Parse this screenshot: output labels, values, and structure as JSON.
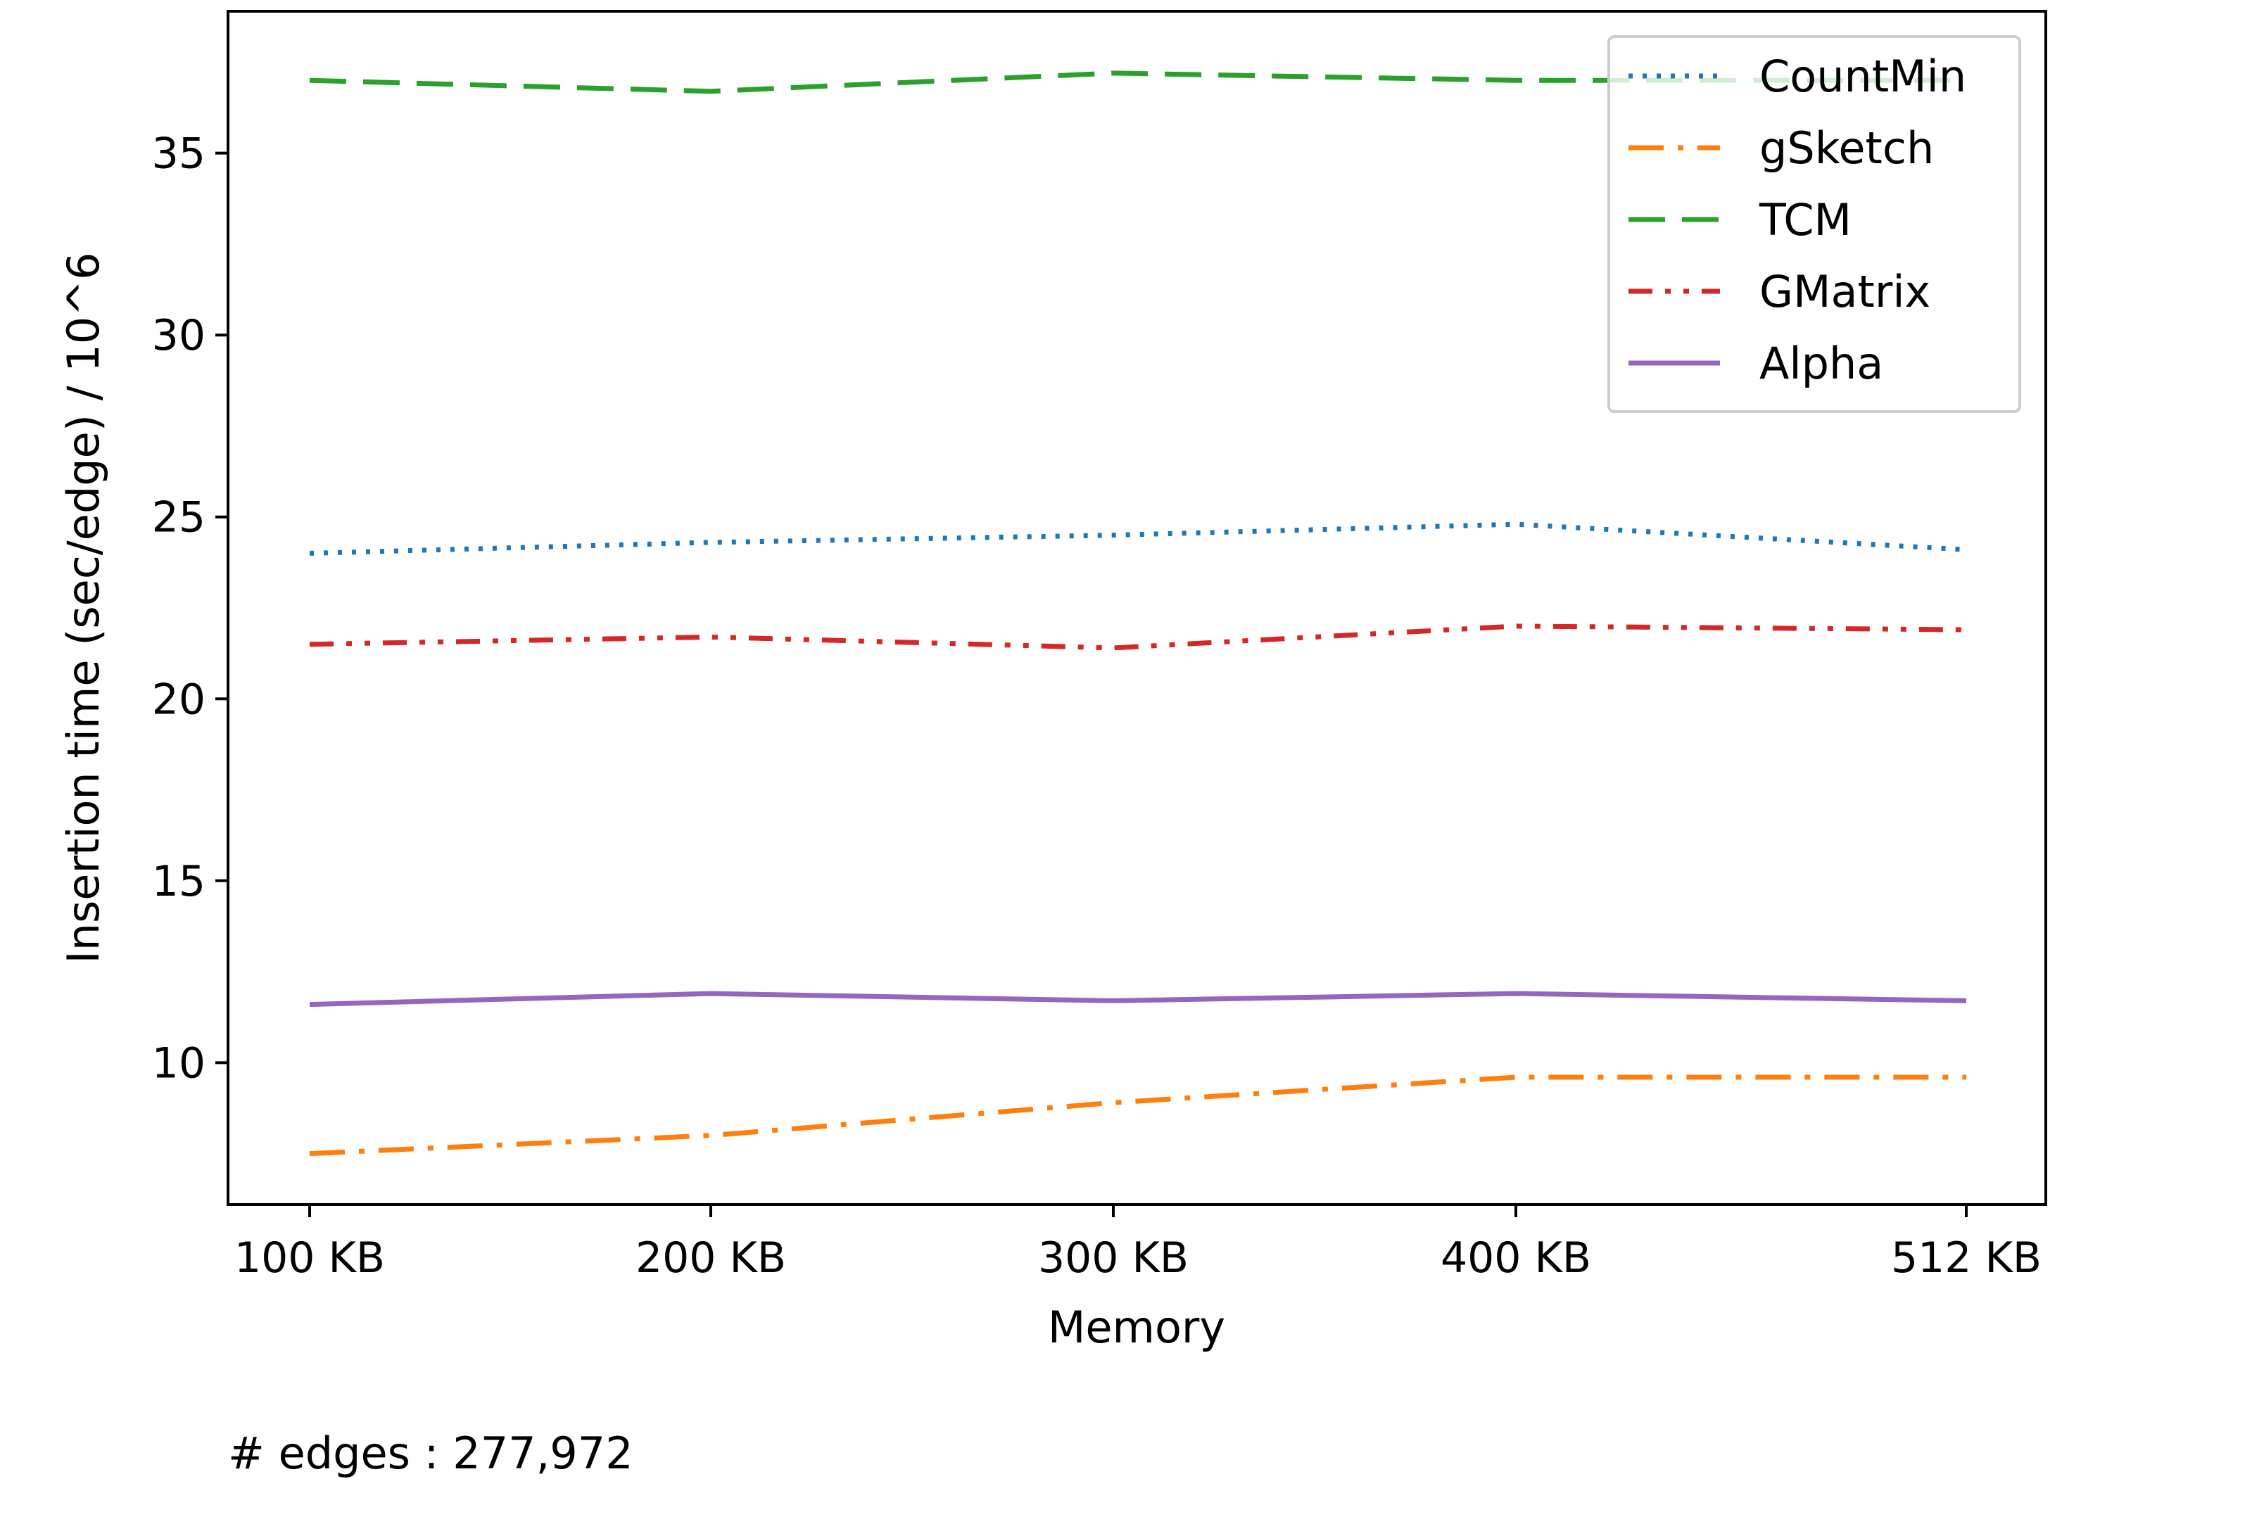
{
  "chart_data": {
    "type": "line",
    "title": "",
    "xlabel": "Memory",
    "ylabel": "Insertion time (sec/edge) / 10^6",
    "categories": [
      "100 KB",
      "200 KB",
      "300 KB",
      "400 KB",
      "512 KB"
    ],
    "x": [
      100,
      200,
      300,
      400,
      512
    ],
    "ylim": [
      6.1,
      38.9
    ],
    "yticks": [
      10,
      15,
      20,
      25,
      30,
      35
    ],
    "grid": false,
    "legend_position": "top-right",
    "series": [
      {
        "name": "CountMin",
        "values": [
          24.0,
          24.3,
          24.5,
          24.8,
          24.1
        ],
        "color": "#1f77b4",
        "style": "dotted"
      },
      {
        "name": "gSketch",
        "values": [
          7.5,
          8.0,
          8.9,
          9.6,
          9.6
        ],
        "color": "#ff7f0e",
        "style": "dashdot"
      },
      {
        "name": "TCM",
        "values": [
          37.0,
          36.7,
          37.2,
          37.0,
          37.0
        ],
        "color": "#2ca02c",
        "style": "dashed"
      },
      {
        "name": "GMatrix",
        "values": [
          21.5,
          21.7,
          21.4,
          22.0,
          21.9
        ],
        "color": "#d62728",
        "style": "dashdotdot"
      },
      {
        "name": "Alpha",
        "values": [
          11.6,
          11.9,
          11.7,
          11.9,
          11.7
        ],
        "color": "#9467bd",
        "style": "solid"
      }
    ]
  },
  "footnote": "# edges : 277,972"
}
